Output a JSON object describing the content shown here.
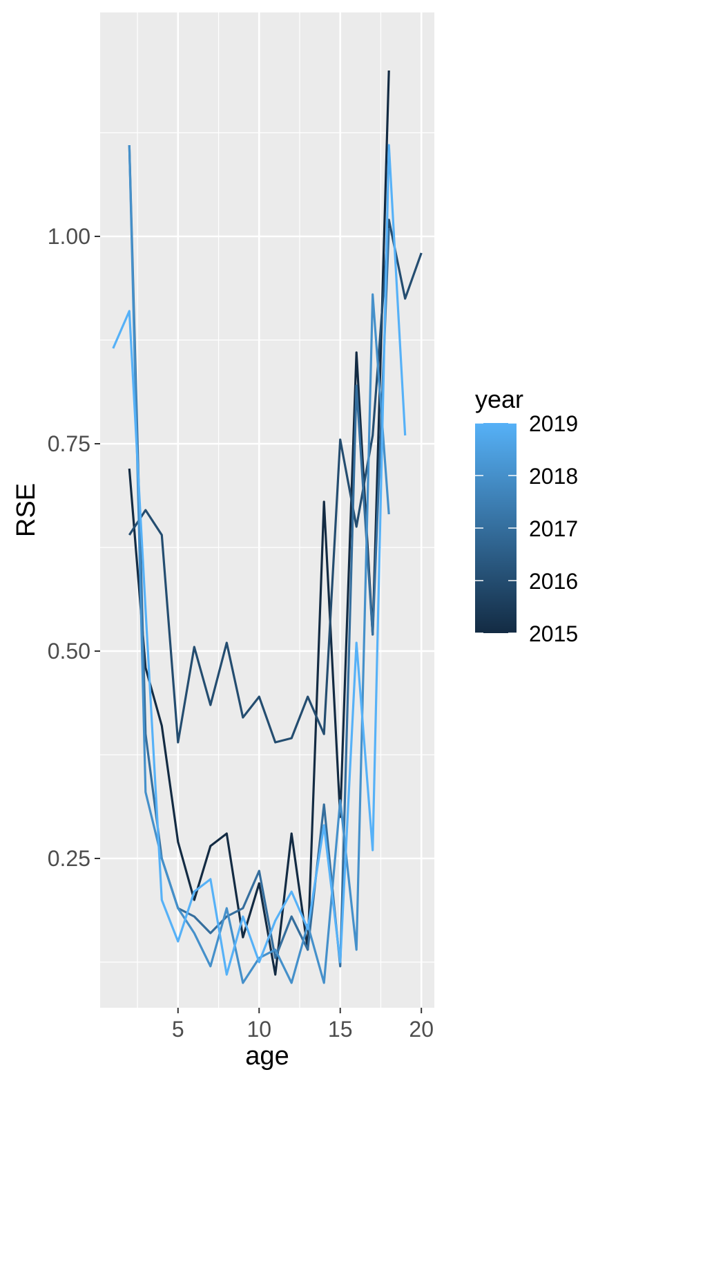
{
  "chart_data": {
    "type": "line",
    "title": "",
    "xlabel": "age",
    "ylabel": "RSE",
    "xlim": [
      0.2,
      20.8
    ],
    "ylim": [
      0.07,
      1.27
    ],
    "x_ticks": [
      5,
      10,
      15,
      20
    ],
    "x_tick_labels": [
      "5",
      "10",
      "15",
      "20"
    ],
    "y_ticks": [
      0.25,
      0.5,
      0.75,
      1.0
    ],
    "y_tick_labels": [
      "0.25",
      "0.50",
      "0.75",
      "1.00"
    ],
    "grid": true,
    "panel_background": "#ebebeb",
    "legend": {
      "title": "year",
      "position": "right",
      "type": "colorbar",
      "low_color": "#132b43",
      "high_color": "#56b1f7",
      "range": [
        2015,
        2019
      ],
      "labels": [
        "2019",
        "2018",
        "2017",
        "2016",
        "2015"
      ],
      "label_values": [
        2019,
        2018,
        2017,
        2016,
        2015
      ]
    },
    "series": [
      {
        "year": 2015,
        "x": [
          2,
          3,
          4,
          5,
          6,
          7,
          8,
          9,
          10,
          11,
          12,
          13,
          14,
          15,
          16,
          17,
          18
        ],
        "y": [
          0.72,
          0.48,
          0.41,
          0.27,
          0.2,
          0.265,
          0.28,
          0.155,
          0.22,
          0.11,
          0.28,
          0.14,
          0.68,
          0.3,
          0.86,
          0.52,
          1.2
        ]
      },
      {
        "year": 2016,
        "x": [
          2,
          3,
          4,
          5,
          6,
          7,
          8,
          9,
          10,
          11,
          12,
          13,
          14,
          15,
          16,
          17,
          18,
          19,
          20
        ],
        "y": [
          0.64,
          0.67,
          0.64,
          0.39,
          0.505,
          0.435,
          0.51,
          0.42,
          0.445,
          0.39,
          0.395,
          0.445,
          0.4,
          0.755,
          0.65,
          0.76,
          1.02,
          0.925,
          0.98
        ]
      },
      {
        "year": 2017,
        "x": [
          2,
          3,
          4,
          5,
          6,
          7,
          8,
          9,
          10,
          11,
          12,
          13,
          14,
          15,
          16,
          17,
          18
        ],
        "y": [
          1.11,
          0.4,
          0.25,
          0.19,
          0.18,
          0.16,
          0.18,
          0.19,
          0.235,
          0.13,
          0.18,
          0.14,
          0.315,
          0.12,
          0.82,
          0.52,
          1.01
        ]
      },
      {
        "year": 2018,
        "x": [
          2,
          3,
          4,
          5,
          6,
          7,
          8,
          9,
          10,
          11,
          12,
          13,
          14,
          15,
          16,
          17,
          18
        ],
        "y": [
          1.11,
          0.33,
          0.25,
          0.19,
          0.16,
          0.12,
          0.19,
          0.1,
          0.13,
          0.14,
          0.1,
          0.17,
          0.1,
          0.32,
          0.14,
          0.93,
          0.665
        ]
      },
      {
        "year": 2019,
        "x": [
          1,
          2,
          3,
          4,
          5,
          6,
          7,
          8,
          9,
          10,
          11,
          12,
          13,
          14,
          15,
          16,
          17,
          18,
          19
        ],
        "y": [
          0.865,
          0.91,
          0.55,
          0.2,
          0.15,
          0.21,
          0.225,
          0.11,
          0.18,
          0.125,
          0.175,
          0.21,
          0.165,
          0.29,
          0.125,
          0.51,
          0.26,
          1.11,
          0.76
        ]
      }
    ]
  }
}
